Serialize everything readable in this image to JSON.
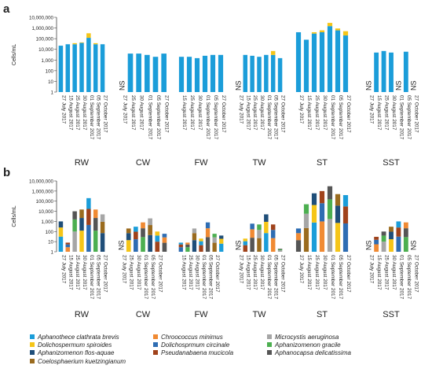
{
  "figure": {
    "panel_labels": [
      "a",
      "b"
    ],
    "ylabel": "Cells/mL",
    "yticks": [
      "1",
      "10",
      "100",
      "1,000",
      "10,000",
      "100,000",
      "1,000,000",
      "10,000,000"
    ],
    "ns_label": "NS",
    "site_labels": [
      "RW",
      "CW",
      "FW",
      "TW",
      "ST",
      "SST"
    ]
  },
  "chart_data": [
    {
      "type": "bar",
      "panel": "a",
      "log_scale": true,
      "ylabel": "Cells/mL",
      "ylim": [
        1,
        10000000
      ],
      "sites": [
        {
          "site": "RW",
          "dates": [
            "27 July 2017",
            "15 August 2017",
            "25 August 2017",
            "30 August 2017",
            "01 September 2017",
            "05 September 2017",
            "27 October 2017"
          ],
          "values": [
            22000,
            30000,
            30000,
            40000,
            120000,
            30000,
            30000
          ],
          "extra": [
            0,
            0,
            8000,
            5000,
            200000,
            8000,
            0
          ]
        },
        {
          "site": "CW",
          "dates": [
            "27 July 2017",
            "25 August 2017",
            "30 August 2017",
            "01 September 2017",
            "05 September 2017",
            "27 October 2017"
          ],
          "values": [
            null,
            4000,
            4000,
            3000,
            2000,
            4000
          ],
          "extra": [
            0,
            0,
            0,
            0,
            0,
            0
          ]
        },
        {
          "site": "FW",
          "dates": [
            "15 August 2017",
            "25 August 2017",
            "30 August 2017",
            "01 September 2017",
            "05 September 2017",
            "27 October 2017"
          ],
          "values": [
            2000,
            2000,
            1500,
            2500,
            3000,
            3000
          ],
          "extra": [
            0,
            0,
            0,
            0,
            0,
            0
          ]
        },
        {
          "site": "TW",
          "dates": [
            "27 July 2017",
            "15 August 2017",
            "25 August 2017",
            "30 August 2017",
            "01 September 2017",
            "05 September 2017",
            "27 October 2017"
          ],
          "values": [
            null,
            3000,
            2500,
            2000,
            3000,
            3000,
            1500
          ],
          "extra": [
            0,
            0,
            0,
            0,
            0,
            4000,
            0
          ]
        },
        {
          "site": "ST",
          "dates": [
            "27 July 2017",
            "15 August 2017",
            "25 August 2017",
            "30 August 2017",
            "01 September 2017",
            "05 September 2017",
            "27 October 2017"
          ],
          "values": [
            400000,
            80000,
            300000,
            400000,
            1500000,
            600000,
            200000
          ],
          "extra": [
            0,
            0,
            100000,
            200000,
            1500000,
            300000,
            300000
          ]
        },
        {
          "site": "SST",
          "dates": [
            "27 July 2017",
            "15 August 2017",
            "25 August 2017",
            "30 August 2017",
            "01 September 2017",
            "05 September 2017",
            "27 October 2017"
          ],
          "values": [
            null,
            5000,
            7000,
            5000,
            null,
            6000,
            null
          ],
          "extra": [
            0,
            0,
            0,
            0,
            0,
            0,
            0
          ]
        }
      ]
    },
    {
      "type": "bar",
      "panel": "b",
      "log_scale": true,
      "ylabel": "Cells/mL",
      "ylim": [
        1,
        10000000
      ],
      "stacked": true,
      "sites": [
        {
          "site": "RW",
          "values": [
            1000,
            8,
            10000,
            15000,
            200000,
            15000,
            5000
          ]
        },
        {
          "site": "CW",
          "values": [
            null,
            200,
            300,
            800,
            2000,
            100,
            60
          ]
        },
        {
          "site": "FW",
          "values": [
            8,
            8,
            200,
            20,
            800,
            60,
            40
          ]
        },
        {
          "site": "TW",
          "values": [
            null,
            20,
            600,
            500,
            5000,
            500,
            2
          ]
        },
        {
          "site": "ST",
          "values": [
            200,
            50000,
            600000,
            1000000,
            3000000,
            500000,
            400000
          ]
        },
        {
          "site": "SST",
          "values": [
            null,
            30,
            100,
            300,
            1000,
            800,
            null
          ]
        }
      ]
    }
  ],
  "legend": [
    {
      "label": "Aphanothece clathrata brevis",
      "color": "#1b9dd9"
    },
    {
      "label": "Chroococcus minimus",
      "color": "#f08a33"
    },
    {
      "label": "Microcystis aeruginosa",
      "color": "#a6a6a6"
    },
    {
      "label": "Dolichospermum spiroides",
      "color": "#f5c518"
    },
    {
      "label": "Dolichosprmum circinale",
      "color": "#2e6db3"
    },
    {
      "label": "Aphanizomenon gracile",
      "color": "#4caf50"
    },
    {
      "label": "Aphanizomenon flos-aquae",
      "color": "#1f4e79"
    },
    {
      "label": "Pseudanabaena mucicola",
      "color": "#a0421b"
    },
    {
      "label": "Aphanocapsa delicatissima",
      "color": "#555555"
    },
    {
      "label": "Coelosphaerium kuetzingianum",
      "color": "#9a6b1e"
    }
  ]
}
